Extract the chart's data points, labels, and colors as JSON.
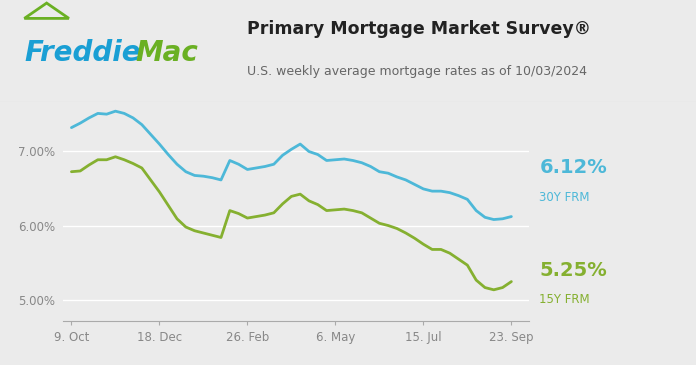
{
  "title": "Primary Mortgage Market Survey®",
  "subtitle": "U.S. weekly average mortgage rates as of 10/03/2024",
  "header_bg": "#ffffff",
  "plot_bg_color": "#ebebeb",
  "fig_bg": "#ebebeb",
  "line_30y_color": "#4db8d8",
  "line_15y_color": "#85b030",
  "label_30y": "6.12%",
  "label_30y_sub": "30Y FRM",
  "label_15y": "5.25%",
  "label_15y_sub": "15Y FRM",
  "x_tick_labels": [
    "9. Oct",
    "18. Dec",
    "26. Feb",
    "6. May",
    "15. Jul",
    "23. Sep"
  ],
  "y_tick_labels": [
    "5.00%",
    "6.00%",
    "7.00%"
  ],
  "ylim": [
    4.72,
    7.65
  ],
  "freddie_blue": "#1a9fd4",
  "freddie_green": "#6ab023",
  "freddie_text_blue": "#1a9fd4",
  "freddie_text_mac": "#6ab023",
  "title_color": "#222222",
  "subtitle_color": "#666666",
  "tick_color": "#888888",
  "grid_color": "#ffffff",
  "rate_30y": [
    7.31,
    7.37,
    7.44,
    7.5,
    7.49,
    7.53,
    7.5,
    7.44,
    7.35,
    7.22,
    7.09,
    6.95,
    6.82,
    6.72,
    6.67,
    6.66,
    6.64,
    6.61,
    6.87,
    6.82,
    6.75,
    6.77,
    6.79,
    6.82,
    6.94,
    7.02,
    7.09,
    6.99,
    6.95,
    6.87,
    6.88,
    6.89,
    6.87,
    6.84,
    6.79,
    6.72,
    6.7,
    6.65,
    6.61,
    6.55,
    6.49,
    6.46,
    6.46,
    6.44,
    6.4,
    6.35,
    6.2,
    6.11,
    6.08,
    6.09,
    6.12
  ],
  "rate_15y": [
    6.72,
    6.73,
    6.81,
    6.88,
    6.88,
    6.92,
    6.88,
    6.83,
    6.77,
    6.61,
    6.45,
    6.27,
    6.09,
    5.98,
    5.93,
    5.9,
    5.87,
    5.84,
    6.2,
    6.16,
    6.1,
    6.12,
    6.14,
    6.17,
    6.29,
    6.39,
    6.42,
    6.33,
    6.28,
    6.2,
    6.21,
    6.22,
    6.2,
    6.17,
    6.1,
    6.03,
    6.0,
    5.96,
    5.9,
    5.83,
    5.75,
    5.68,
    5.68,
    5.63,
    5.55,
    5.47,
    5.27,
    5.17,
    5.14,
    5.17,
    5.25
  ],
  "x_tick_pos": [
    0,
    10,
    20,
    30,
    40,
    50
  ]
}
